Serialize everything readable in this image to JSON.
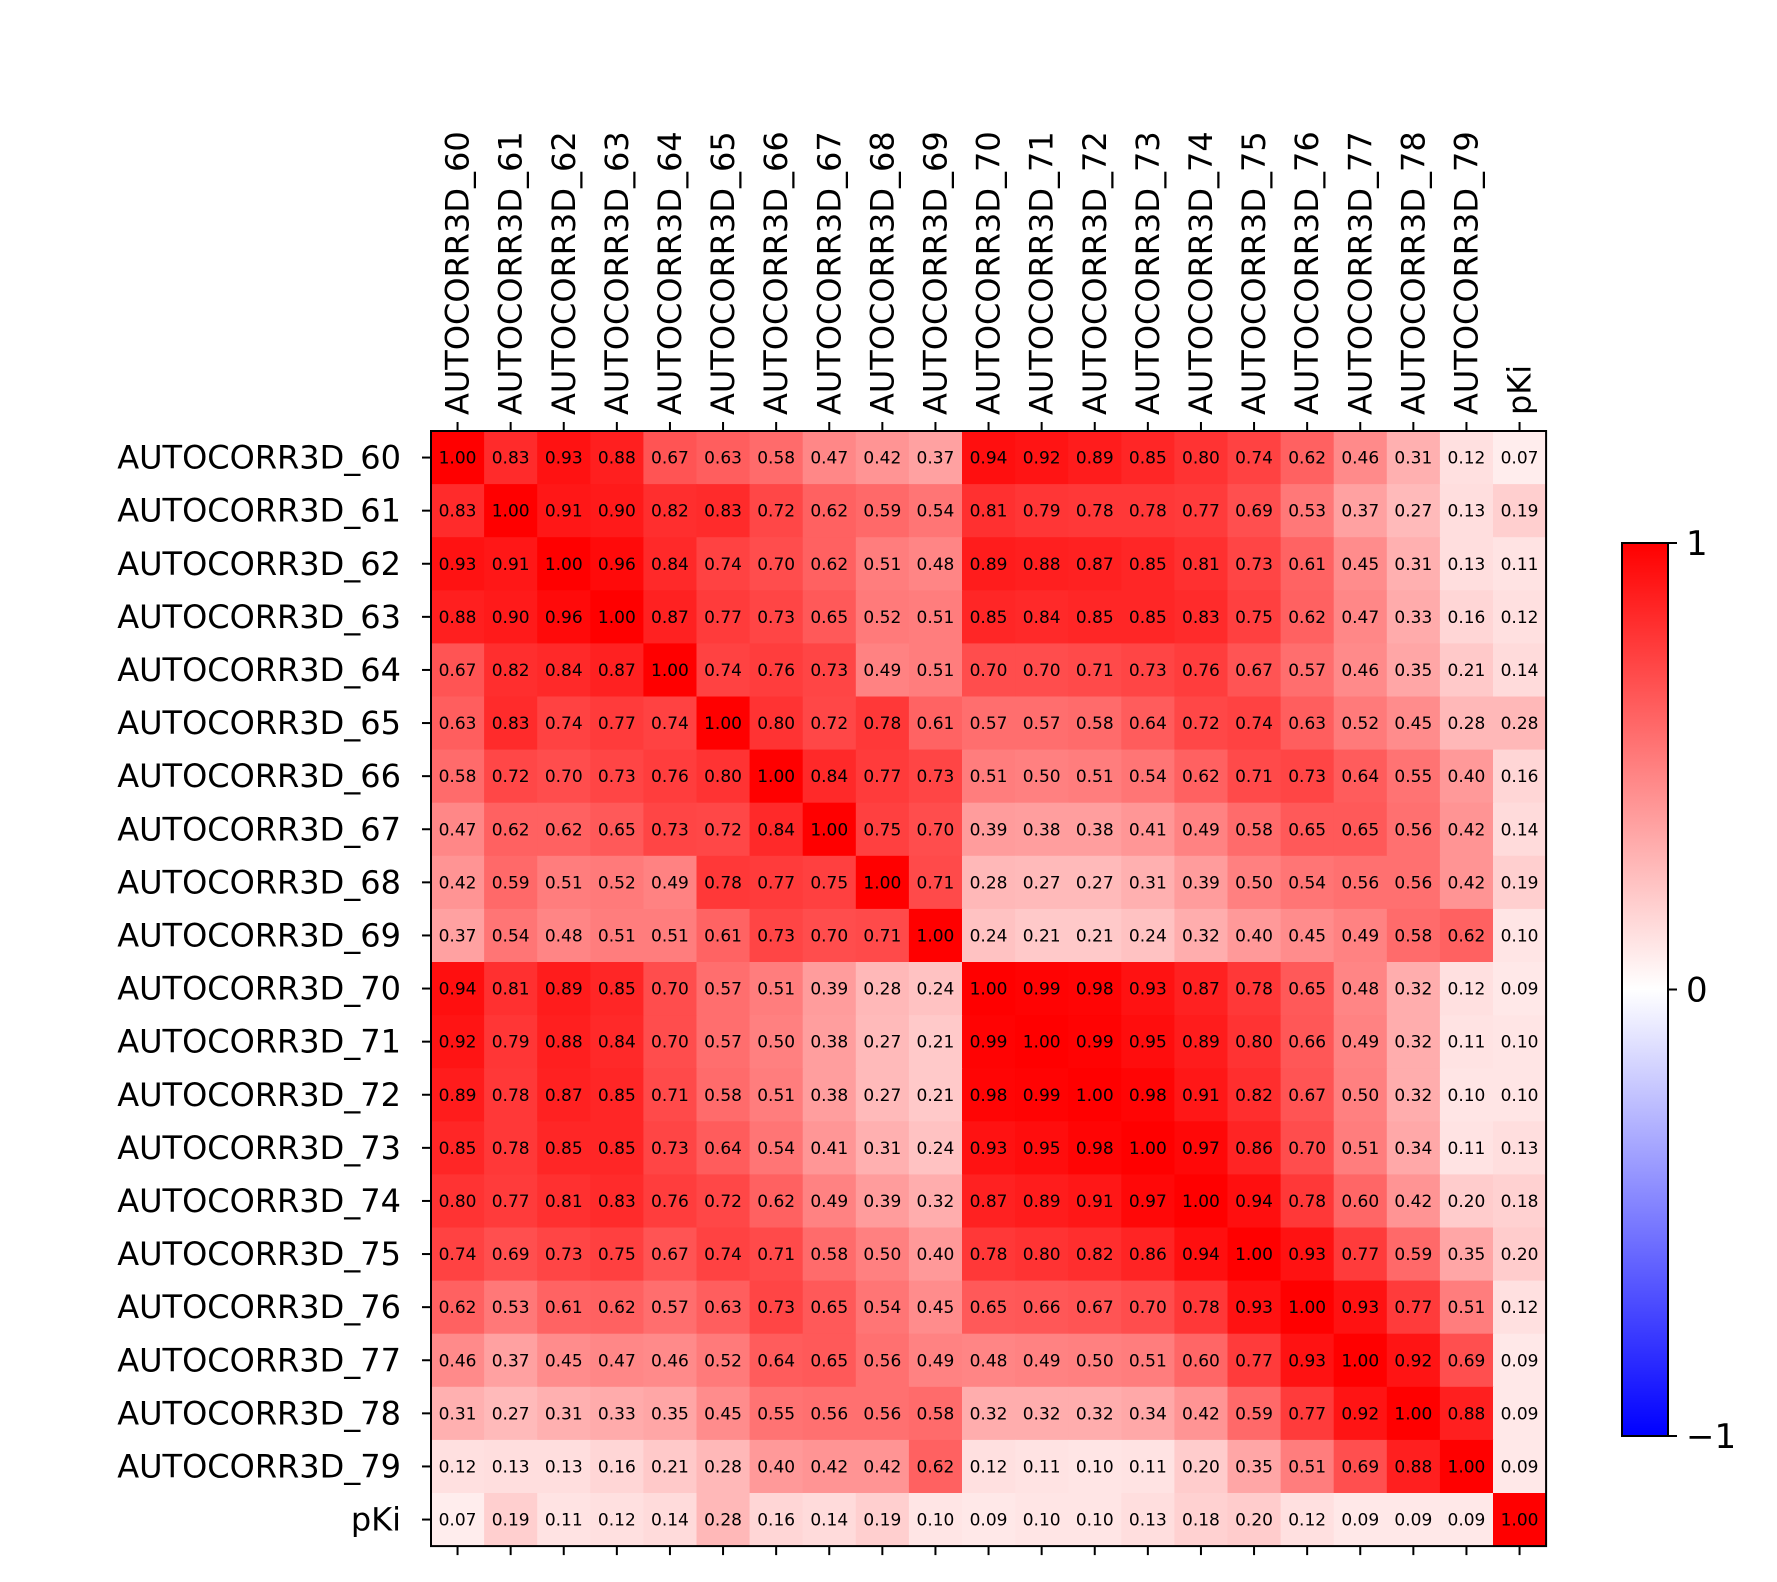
{
  "chart_data": {
    "type": "heatmap",
    "title": "",
    "xlabel": "",
    "ylabel": "",
    "labels": [
      "AUTOCORR3D_60",
      "AUTOCORR3D_61",
      "AUTOCORR3D_62",
      "AUTOCORR3D_63",
      "AUTOCORR3D_64",
      "AUTOCORR3D_65",
      "AUTOCORR3D_66",
      "AUTOCORR3D_67",
      "AUTOCORR3D_68",
      "AUTOCORR3D_69",
      "AUTOCORR3D_70",
      "AUTOCORR3D_71",
      "AUTOCORR3D_72",
      "AUTOCORR3D_73",
      "AUTOCORR3D_74",
      "AUTOCORR3D_75",
      "AUTOCORR3D_76",
      "AUTOCORR3D_77",
      "AUTOCORR3D_78",
      "AUTOCORR3D_79",
      "pKi"
    ],
    "matrix": [
      [
        1.0,
        0.83,
        0.93,
        0.88,
        0.67,
        0.63,
        0.58,
        0.47,
        0.42,
        0.37,
        0.94,
        0.92,
        0.89,
        0.85,
        0.8,
        0.74,
        0.62,
        0.46,
        0.31,
        0.12,
        0.07
      ],
      [
        0.83,
        1.0,
        0.91,
        0.9,
        0.82,
        0.83,
        0.72,
        0.62,
        0.59,
        0.54,
        0.81,
        0.79,
        0.78,
        0.78,
        0.77,
        0.69,
        0.53,
        0.37,
        0.27,
        0.13,
        0.19
      ],
      [
        0.93,
        0.91,
        1.0,
        0.96,
        0.84,
        0.74,
        0.7,
        0.62,
        0.51,
        0.48,
        0.89,
        0.88,
        0.87,
        0.85,
        0.81,
        0.73,
        0.61,
        0.45,
        0.31,
        0.13,
        0.11
      ],
      [
        0.88,
        0.9,
        0.96,
        1.0,
        0.87,
        0.77,
        0.73,
        0.65,
        0.52,
        0.51,
        0.85,
        0.84,
        0.85,
        0.85,
        0.83,
        0.75,
        0.62,
        0.47,
        0.33,
        0.16,
        0.12
      ],
      [
        0.67,
        0.82,
        0.84,
        0.87,
        1.0,
        0.74,
        0.76,
        0.73,
        0.49,
        0.51,
        0.7,
        0.7,
        0.71,
        0.73,
        0.76,
        0.67,
        0.57,
        0.46,
        0.35,
        0.21,
        0.14
      ],
      [
        0.63,
        0.83,
        0.74,
        0.77,
        0.74,
        1.0,
        0.8,
        0.72,
        0.78,
        0.61,
        0.57,
        0.57,
        0.58,
        0.64,
        0.72,
        0.74,
        0.63,
        0.52,
        0.45,
        0.28,
        0.28
      ],
      [
        0.58,
        0.72,
        0.7,
        0.73,
        0.76,
        0.8,
        1.0,
        0.84,
        0.77,
        0.73,
        0.51,
        0.5,
        0.51,
        0.54,
        0.62,
        0.71,
        0.73,
        0.64,
        0.55,
        0.4,
        0.16
      ],
      [
        0.47,
        0.62,
        0.62,
        0.65,
        0.73,
        0.72,
        0.84,
        1.0,
        0.75,
        0.7,
        0.39,
        0.38,
        0.38,
        0.41,
        0.49,
        0.58,
        0.65,
        0.65,
        0.56,
        0.42,
        0.14
      ],
      [
        0.42,
        0.59,
        0.51,
        0.52,
        0.49,
        0.78,
        0.77,
        0.75,
        1.0,
        0.71,
        0.28,
        0.27,
        0.27,
        0.31,
        0.39,
        0.5,
        0.54,
        0.56,
        0.56,
        0.42,
        0.19
      ],
      [
        0.37,
        0.54,
        0.48,
        0.51,
        0.51,
        0.61,
        0.73,
        0.7,
        0.71,
        1.0,
        0.24,
        0.21,
        0.21,
        0.24,
        0.32,
        0.4,
        0.45,
        0.49,
        0.58,
        0.62,
        0.1
      ],
      [
        0.94,
        0.81,
        0.89,
        0.85,
        0.7,
        0.57,
        0.51,
        0.39,
        0.28,
        0.24,
        1.0,
        0.99,
        0.98,
        0.93,
        0.87,
        0.78,
        0.65,
        0.48,
        0.32,
        0.12,
        0.09
      ],
      [
        0.92,
        0.79,
        0.88,
        0.84,
        0.7,
        0.57,
        0.5,
        0.38,
        0.27,
        0.21,
        0.99,
        1.0,
        0.99,
        0.95,
        0.89,
        0.8,
        0.66,
        0.49,
        0.32,
        0.11,
        0.1
      ],
      [
        0.89,
        0.78,
        0.87,
        0.85,
        0.71,
        0.58,
        0.51,
        0.38,
        0.27,
        0.21,
        0.98,
        0.99,
        1.0,
        0.98,
        0.91,
        0.82,
        0.67,
        0.5,
        0.32,
        0.1,
        0.1
      ],
      [
        0.85,
        0.78,
        0.85,
        0.85,
        0.73,
        0.64,
        0.54,
        0.41,
        0.31,
        0.24,
        0.93,
        0.95,
        0.98,
        1.0,
        0.97,
        0.86,
        0.7,
        0.51,
        0.34,
        0.11,
        0.13
      ],
      [
        0.8,
        0.77,
        0.81,
        0.83,
        0.76,
        0.72,
        0.62,
        0.49,
        0.39,
        0.32,
        0.87,
        0.89,
        0.91,
        0.97,
        1.0,
        0.94,
        0.78,
        0.6,
        0.42,
        0.2,
        0.18
      ],
      [
        0.74,
        0.69,
        0.73,
        0.75,
        0.67,
        0.74,
        0.71,
        0.58,
        0.5,
        0.4,
        0.78,
        0.8,
        0.82,
        0.86,
        0.94,
        1.0,
        0.93,
        0.77,
        0.59,
        0.35,
        0.2
      ],
      [
        0.62,
        0.53,
        0.61,
        0.62,
        0.57,
        0.63,
        0.73,
        0.65,
        0.54,
        0.45,
        0.65,
        0.66,
        0.67,
        0.7,
        0.78,
        0.93,
        1.0,
        0.93,
        0.77,
        0.51,
        0.12
      ],
      [
        0.46,
        0.37,
        0.45,
        0.47,
        0.46,
        0.52,
        0.64,
        0.65,
        0.56,
        0.49,
        0.48,
        0.49,
        0.5,
        0.51,
        0.6,
        0.77,
        0.93,
        1.0,
        0.92,
        0.69,
        0.09
      ],
      [
        0.31,
        0.27,
        0.31,
        0.33,
        0.35,
        0.45,
        0.55,
        0.56,
        0.56,
        0.58,
        0.32,
        0.32,
        0.32,
        0.34,
        0.42,
        0.59,
        0.77,
        0.92,
        1.0,
        0.88,
        0.09
      ],
      [
        0.12,
        0.13,
        0.13,
        0.16,
        0.21,
        0.28,
        0.4,
        0.42,
        0.42,
        0.62,
        0.12,
        0.11,
        0.1,
        0.11,
        0.2,
        0.35,
        0.51,
        0.69,
        0.88,
        1.0,
        0.09
      ],
      [
        0.07,
        0.19,
        0.11,
        0.12,
        0.14,
        0.28,
        0.16,
        0.14,
        0.19,
        0.1,
        0.09,
        0.1,
        0.1,
        0.13,
        0.18,
        0.2,
        0.12,
        0.09,
        0.09,
        0.09,
        1.0
      ]
    ],
    "value_format": "2 decimals",
    "colormap": "bwr",
    "vmin": -1,
    "vmax": 1,
    "colorbar_ticks": [
      "1",
      "0",
      "−1"
    ],
    "colors": {
      "low": "#0000ff",
      "mid": "#ffffff",
      "high": "#ff0000"
    },
    "x_tick_position": "top",
    "legend": "colorbar-right",
    "grid": false
  }
}
